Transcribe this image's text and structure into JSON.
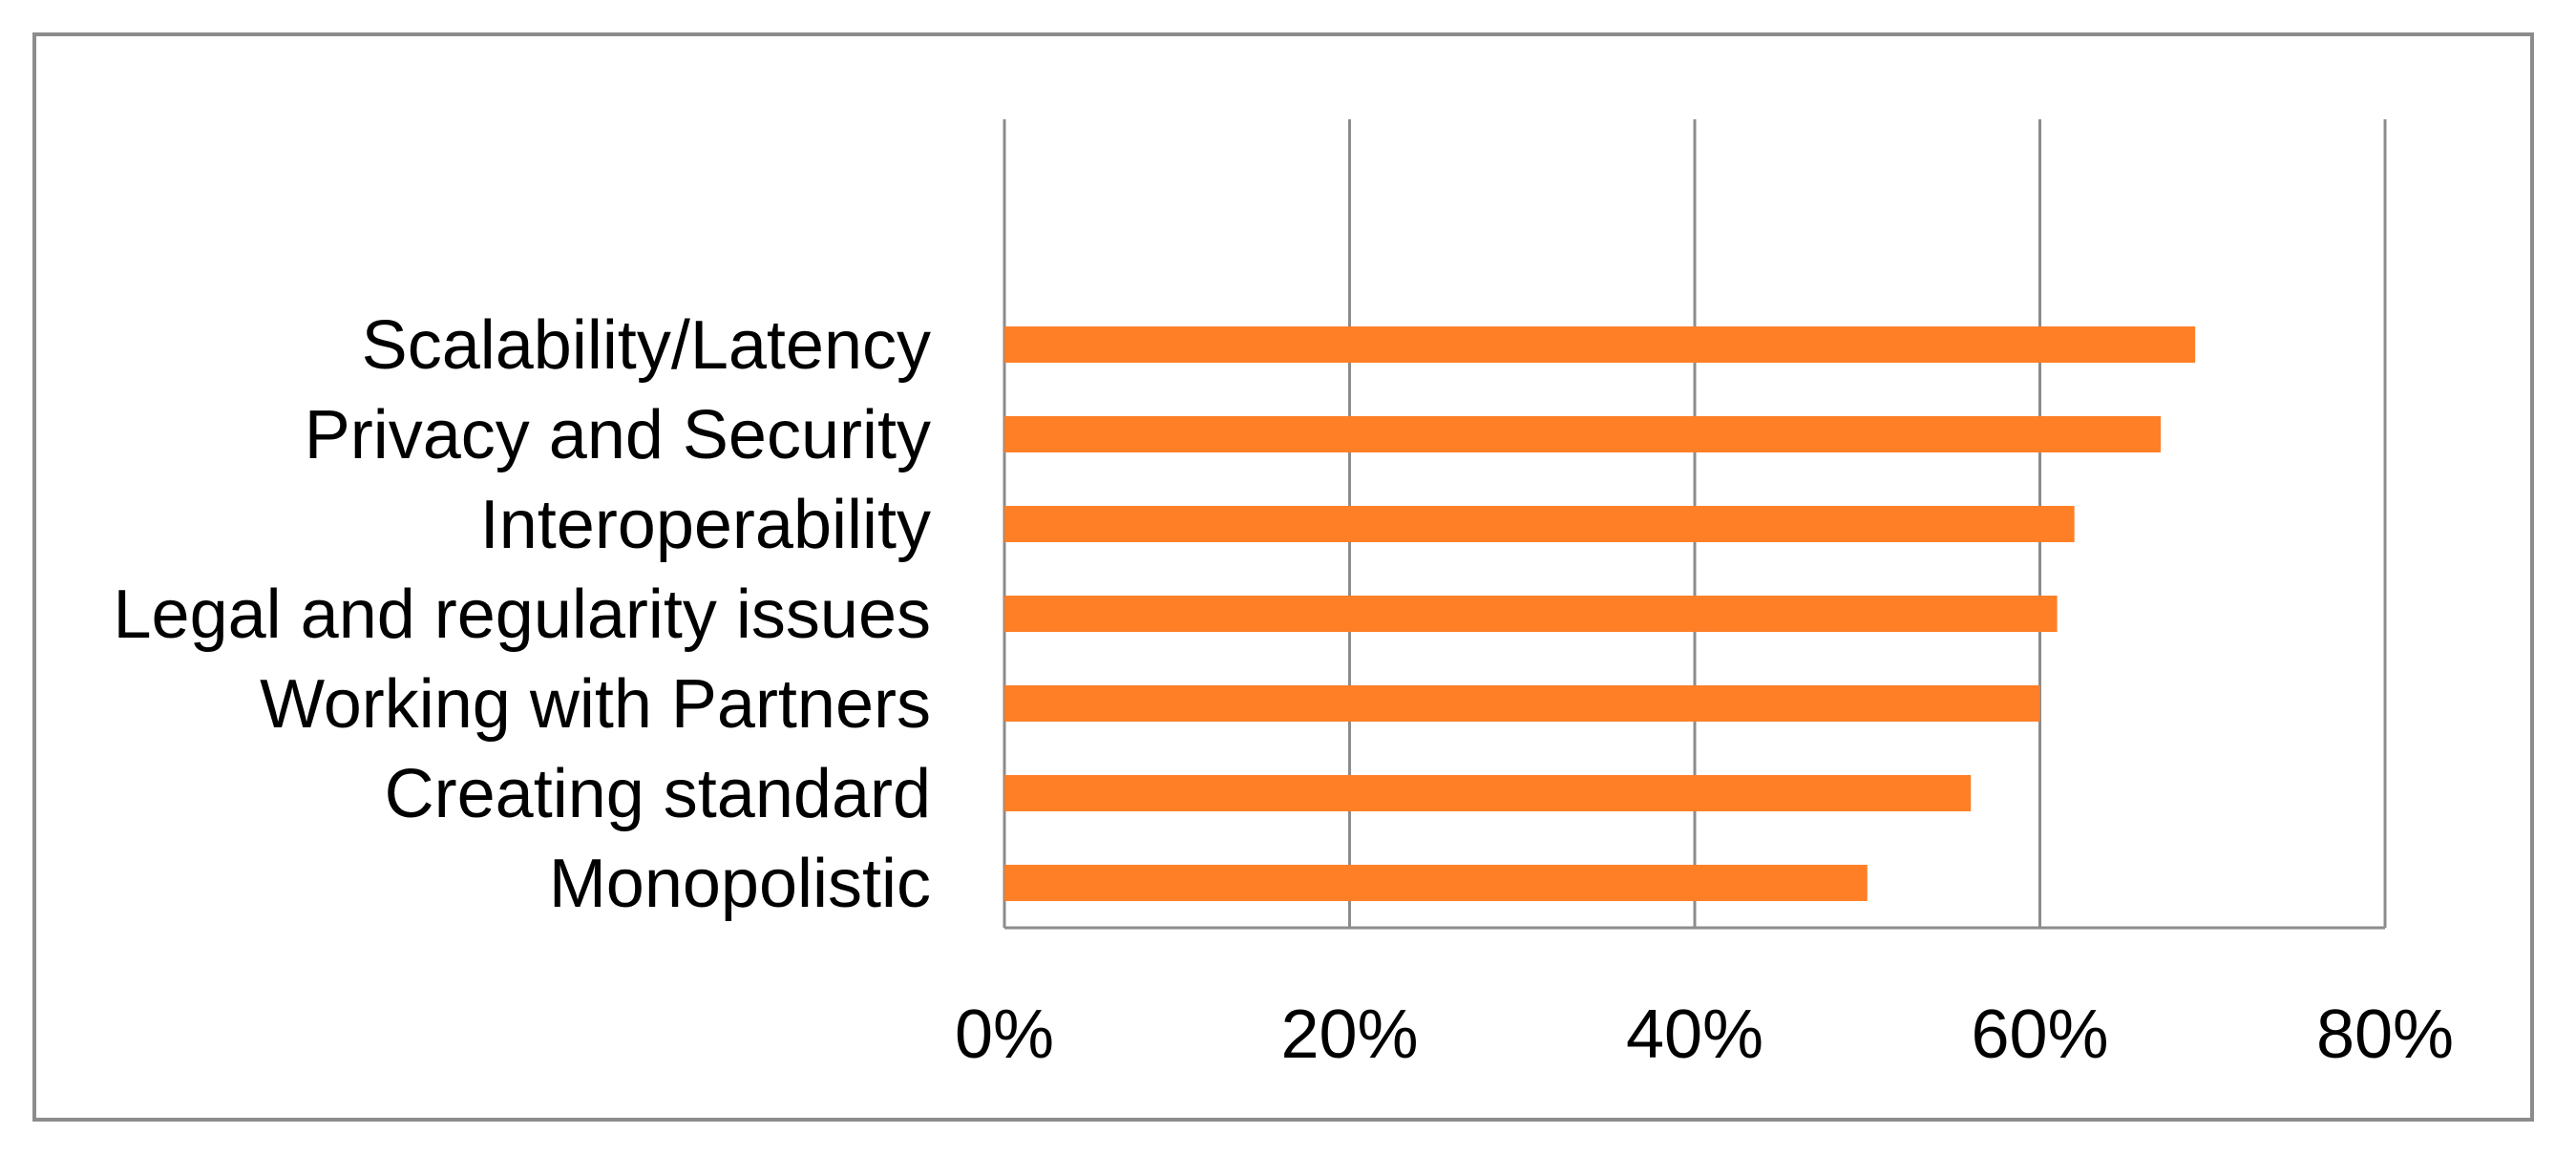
{
  "chart_data": {
    "type": "bar",
    "orientation": "horizontal",
    "title": "",
    "xlabel": "",
    "ylabel": "",
    "categories": [
      "Scalability/Latency",
      "Privacy and Security",
      "Interoperability",
      "Legal and regularity issues",
      "Working with Partners",
      "Creating standard",
      "Monopolistic"
    ],
    "values": [
      69,
      67,
      62,
      61,
      60,
      56,
      50
    ],
    "value_unit": "%",
    "xlim": [
      0,
      80
    ],
    "x_ticks": [
      0,
      20,
      40,
      60,
      80
    ],
    "x_tick_labels": [
      "0%",
      "20%",
      "40%",
      "60%",
      "80%"
    ],
    "grid": true,
    "legend": "none",
    "bar_color": "#ff7f27",
    "grid_color": "#8c8c8c"
  }
}
